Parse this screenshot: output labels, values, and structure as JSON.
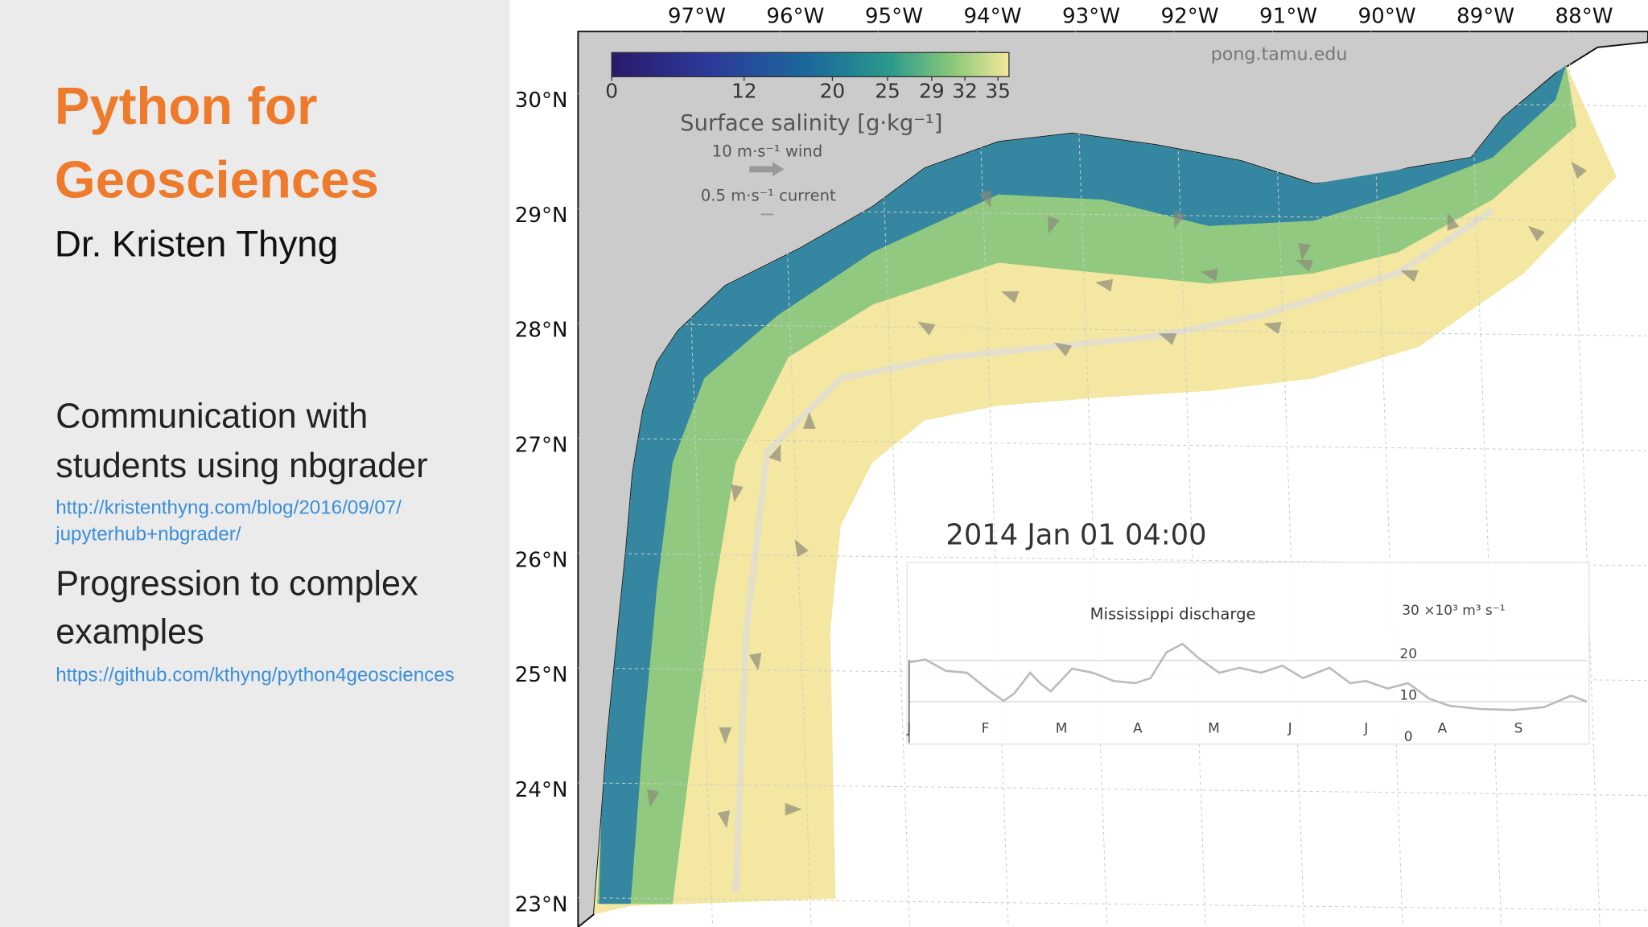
{
  "slide": {
    "title": [
      "Python for",
      "Geosciences"
    ],
    "author": "Dr. Kristen Thyng",
    "items": [
      {
        "text": [
          "Communication with",
          "students using nbgrader"
        ],
        "link": [
          "http://kristenthyng.com/blog/2016/09/07/",
          "jupyterhub+nbgrader/"
        ]
      },
      {
        "text": [
          "Progression to complex",
          "examples"
        ],
        "link": [
          "https://github.com/kthyng/python4geosciences"
        ]
      }
    ]
  },
  "map": {
    "longitude_labels": [
      "97°W",
      "96°W",
      "95°W",
      "94°W",
      "93°W",
      "92°W",
      "91°W",
      "90°W",
      "89°W",
      "88°W"
    ],
    "latitude_labels": [
      "30°N",
      "29°N",
      "28°N",
      "27°N",
      "26°N",
      "25°N",
      "24°N",
      "23°N"
    ],
    "source": "pong.tamu.edu",
    "timestamp": "2014 Jan 01 04:00",
    "colorbar": {
      "label": "Surface salinity [g·kg⁻¹]",
      "lim": [
        0,
        36
      ],
      "ticks": [
        0,
        12,
        20,
        25,
        29,
        32,
        35
      ]
    },
    "wind_legend": "10 m·s⁻¹  wind",
    "current_legend": "0.5 m·s⁻¹  current"
  },
  "chart_data": {
    "type": "line",
    "title": "Mississippi discharge",
    "x": [
      0,
      0.21,
      0.48,
      0.76,
      1.03,
      1.24,
      1.38,
      1.59,
      1.72,
      1.86,
      2.14,
      2.41,
      2.69,
      2.97,
      3.17,
      3.38,
      3.59,
      3.79,
      4.07,
      4.34,
      4.62,
      4.9,
      5.17,
      5.52,
      5.79,
      6.0,
      6.28,
      6.55,
      6.83,
      7.1,
      7.52,
      7.93,
      8.34,
      8.69,
      8.9
    ],
    "values": [
      19.5,
      20.2,
      17.5,
      17,
      13,
      10.2,
      12,
      17,
      14.5,
      12.5,
      18,
      17,
      15,
      14.5,
      15.7,
      22,
      24,
      20.7,
      17,
      18.2,
      17,
      18.7,
      15.7,
      18.2,
      14.5,
      15,
      13.2,
      14.5,
      10.7,
      9,
      8.2,
      8,
      8.7,
      11.5,
      10
    ],
    "color": "#bbbbbb",
    "xlim": [
      0,
      8.9
    ],
    "xticks": [
      {
        "value": 0,
        "label": "J"
      },
      {
        "value": 1,
        "label": "F"
      },
      {
        "value": 2,
        "label": "M"
      },
      {
        "value": 3,
        "label": "A"
      },
      {
        "value": 4,
        "label": "M"
      },
      {
        "value": 5,
        "label": "J"
      },
      {
        "value": 6,
        "label": "J"
      },
      {
        "value": 7,
        "label": "A"
      },
      {
        "value": 8,
        "label": "S"
      }
    ],
    "ylim": [
      0,
      30
    ],
    "yticks": [
      0,
      10,
      20,
      {
        "value": 30,
        "label": "30 ×10³  m³ s⁻¹"
      }
    ],
    "grid": true
  }
}
